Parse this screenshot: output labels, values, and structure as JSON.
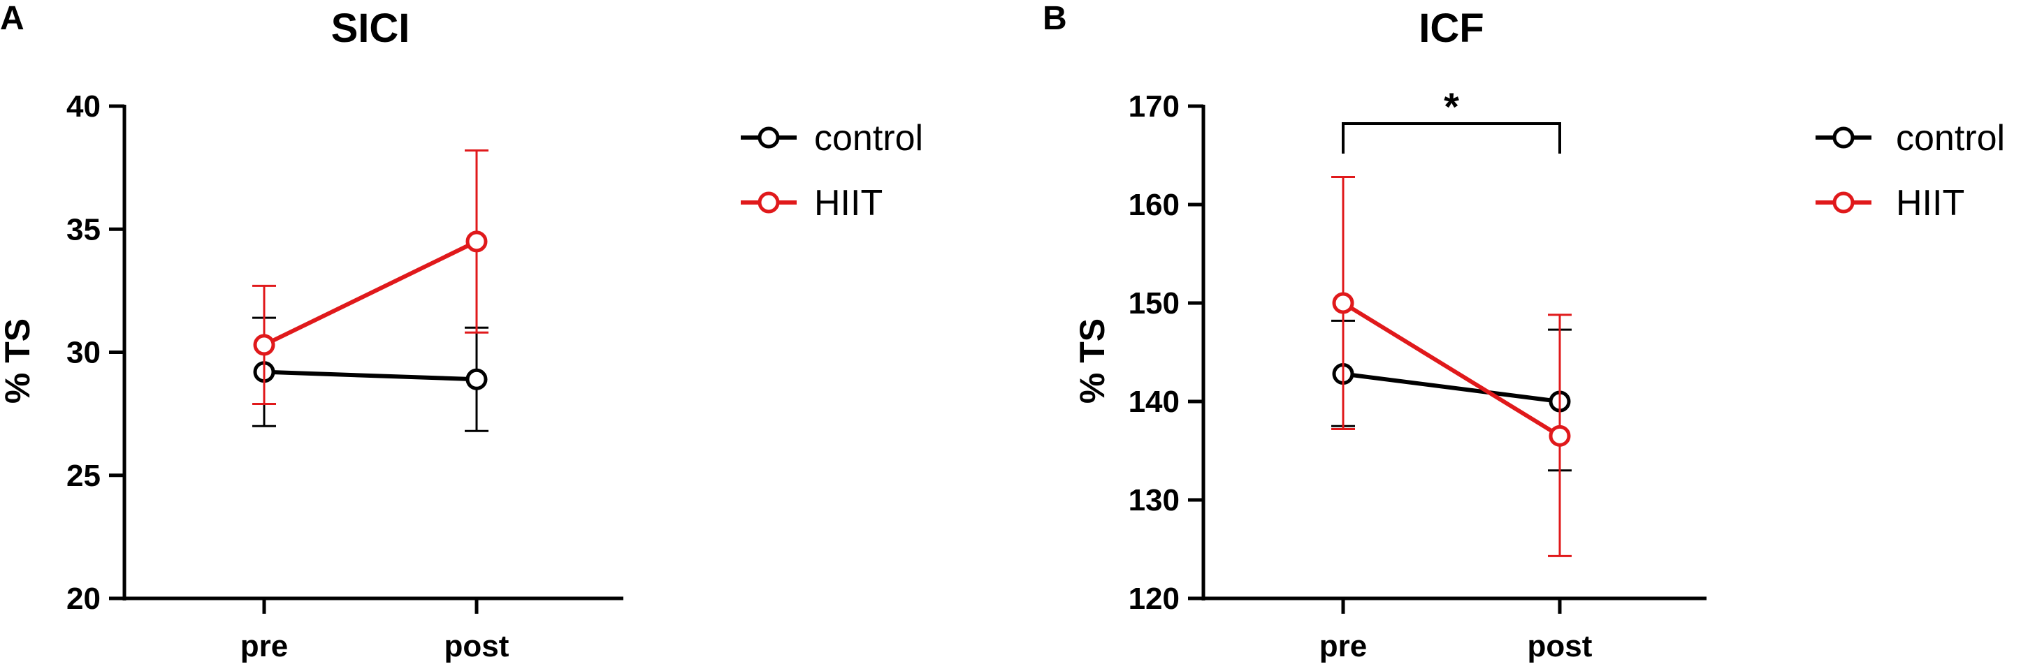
{
  "chart_data": [
    {
      "type": "line",
      "panel_label": "A",
      "title": "SICI",
      "ylabel": "% TS",
      "xlabel": "",
      "categories": [
        "pre",
        "post"
      ],
      "ylim": [
        20,
        40
      ],
      "yticks": [
        20,
        25,
        30,
        35,
        40
      ],
      "series": [
        {
          "name": "control",
          "color": "#000000",
          "values": [
            29.2,
            28.9
          ],
          "err_low": [
            27.0,
            26.8
          ],
          "err_high": [
            31.4,
            31.0
          ]
        },
        {
          "name": "HIIT",
          "color": "#e0191b",
          "values": [
            30.3,
            34.5
          ],
          "err_low": [
            27.9,
            30.8
          ],
          "err_high": [
            32.7,
            38.2
          ]
        }
      ],
      "legend_position": "right"
    },
    {
      "type": "line",
      "panel_label": "B",
      "title": "ICF",
      "ylabel": "% TS",
      "xlabel": "",
      "categories": [
        "pre",
        "post"
      ],
      "ylim": [
        120,
        170
      ],
      "yticks": [
        120,
        130,
        140,
        150,
        160,
        170
      ],
      "series": [
        {
          "name": "control",
          "color": "#000000",
          "values": [
            142.8,
            140.0
          ],
          "err_low": [
            137.5,
            133.0
          ],
          "err_high": [
            148.2,
            147.3
          ]
        },
        {
          "name": "HIIT",
          "color": "#e0191b",
          "values": [
            150.0,
            136.5
          ],
          "err_low": [
            137.2,
            124.3
          ],
          "err_high": [
            162.8,
            148.8
          ]
        }
      ],
      "significance": {
        "from": "pre",
        "to": "post",
        "label": "*"
      },
      "legend_position": "right"
    }
  ]
}
